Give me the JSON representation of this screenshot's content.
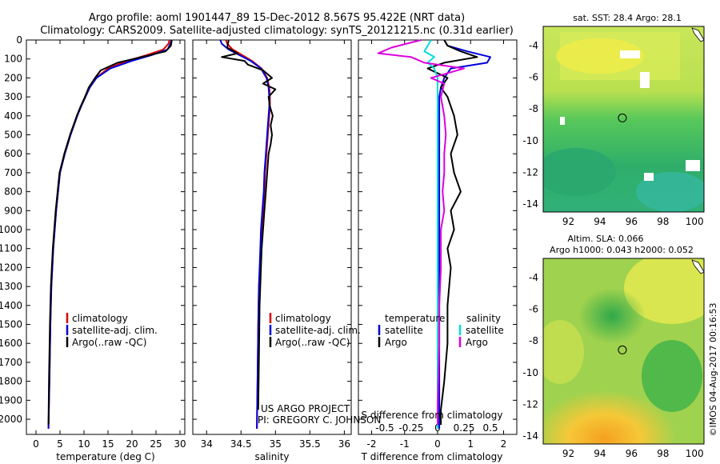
{
  "header": {
    "title_line1": "Argo profile: aoml 1901447_89 15-Dec-2012 8.567S 95.422E (NRT data)",
    "title_line2": "Climatology: CARS2009. Satellite-adjusted climatology: synTS_20121215.nc (0.31d earlier)"
  },
  "colors": {
    "climatology": "#dd0000",
    "satellite": "#0000dd",
    "argo": "#000000",
    "salinity_satellite": "#00dddd",
    "salinity_argo": "#dd00dd"
  },
  "chart_data": [
    {
      "type": "line",
      "name": "temperature-profile",
      "xlabel": "temperature (deg C)",
      "ylabel": "",
      "xlim": [
        -2,
        31
      ],
      "ylim": [
        2080,
        0
      ],
      "xticks": [
        "0",
        "5",
        "10",
        "15",
        "20",
        "25",
        "30"
      ],
      "xtick_values": [
        0,
        5,
        10,
        15,
        20,
        25,
        30
      ],
      "yticks": [
        "0",
        "100",
        "200",
        "300",
        "400",
        "500",
        "600",
        "700",
        "800",
        "900",
        "1000",
        "1100",
        "1200",
        "1300",
        "1400",
        "1500",
        "1600",
        "1700",
        "1800",
        "1900",
        "2000"
      ],
      "ytick_values": [
        0,
        100,
        200,
        300,
        400,
        500,
        600,
        700,
        800,
        900,
        1000,
        1100,
        1200,
        1300,
        1400,
        1500,
        1600,
        1700,
        1800,
        1900,
        2000
      ],
      "legend": [
        "climatology",
        "satellite-adj. clim.",
        "Argo(..raw -QC)"
      ],
      "series": [
        {
          "name": "climatology",
          "color": "#dd0000",
          "x": [
            27.8,
            27.6,
            26.5,
            23,
            19,
            15,
            12.5,
            11.2,
            10.3,
            9.4,
            8.6,
            7.9,
            7.2,
            6.6,
            6.0,
            5.5,
            5.0,
            4.6,
            4.2,
            3.9,
            3.6,
            3.4,
            3.2,
            3.0,
            2.8,
            2.6
          ],
          "y": [
            0,
            20,
            50,
            80,
            110,
            150,
            200,
            250,
            300,
            350,
            400,
            450,
            500,
            550,
            600,
            650,
            700,
            800,
            900,
            1000,
            1100,
            1200,
            1300,
            1500,
            1800,
            2050
          ]
        },
        {
          "name": "satellite-adj. clim.",
          "color": "#0000dd",
          "x": [
            28.2,
            28.0,
            27.4,
            24,
            20,
            15.5,
            12.6,
            11.2,
            10.3,
            9.4,
            8.6,
            7.9,
            7.2,
            6.6,
            6.0,
            5.5,
            5.0,
            4.6,
            4.2,
            3.9,
            3.6,
            3.4,
            3.2,
            3.0,
            2.8,
            2.6
          ],
          "y": [
            0,
            20,
            50,
            80,
            110,
            150,
            200,
            250,
            300,
            350,
            400,
            450,
            500,
            550,
            600,
            650,
            700,
            800,
            900,
            1000,
            1100,
            1200,
            1300,
            1500,
            1800,
            2050
          ]
        },
        {
          "name": "Argo(..raw -QC)",
          "color": "#000000",
          "x": [
            28.3,
            28.1,
            27.0,
            22,
            17,
            13.5,
            12.3,
            11.0,
            10.2,
            9.3,
            8.5,
            7.8,
            7.1,
            6.5,
            5.9,
            5.4,
            4.9,
            4.5,
            4.1,
            3.8,
            3.5,
            3.3,
            3.1,
            2.9,
            2.7,
            2.6
          ],
          "y": [
            0,
            30,
            60,
            90,
            120,
            160,
            200,
            250,
            300,
            350,
            400,
            450,
            500,
            550,
            600,
            650,
            700,
            800,
            900,
            1000,
            1100,
            1200,
            1300,
            1500,
            1800,
            2030
          ]
        }
      ]
    },
    {
      "type": "line",
      "name": "salinity-profile",
      "xlabel": "salinity",
      "xlim": [
        33.8,
        36.1
      ],
      "ylim": [
        2080,
        0
      ],
      "xticks": [
        "34",
        "34.5",
        "35",
        "35.5",
        "36"
      ],
      "xtick_values": [
        34,
        34.5,
        35,
        35.5,
        36
      ],
      "legend": [
        "climatology",
        "satellite-adj. clim.",
        "Argo(..raw -QC)"
      ],
      "annotation_line1": "US ARGO PROJECT",
      "annotation_line2": "PI: GREGORY C. JOHNSON",
      "series": [
        {
          "name": "climatology",
          "color": "#dd0000",
          "x": [
            34.28,
            34.3,
            34.38,
            34.52,
            34.66,
            34.8,
            34.88,
            34.91,
            34.92,
            34.92,
            34.91,
            34.9,
            34.89,
            34.88,
            34.87,
            34.86,
            34.85,
            34.84,
            34.82,
            34.8,
            34.79,
            34.78,
            34.76,
            34.75,
            34.74,
            34.73
          ],
          "y": [
            0,
            20,
            50,
            80,
            110,
            150,
            200,
            250,
            300,
            350,
            400,
            450,
            500,
            550,
            600,
            650,
            700,
            800,
            900,
            1000,
            1100,
            1200,
            1300,
            1500,
            1800,
            2050
          ]
        },
        {
          "name": "satellite-adj. clim.",
          "color": "#0000dd",
          "x": [
            34.2,
            34.22,
            34.32,
            34.48,
            34.64,
            34.79,
            34.87,
            34.9,
            34.91,
            34.91,
            34.9,
            34.89,
            34.88,
            34.87,
            34.86,
            34.85,
            34.84,
            34.83,
            34.81,
            34.79,
            34.78,
            34.77,
            34.76,
            34.75,
            34.74,
            34.73
          ],
          "y": [
            0,
            20,
            50,
            80,
            110,
            150,
            200,
            250,
            300,
            350,
            400,
            450,
            500,
            550,
            600,
            650,
            700,
            800,
            900,
            1000,
            1100,
            1200,
            1300,
            1500,
            1800,
            2050
          ]
        },
        {
          "name": "Argo(..raw -QC)",
          "color": "#000000",
          "x": [
            34.32,
            34.3,
            34.45,
            34.22,
            34.55,
            34.6,
            34.82,
            34.95,
            34.82,
            35.0,
            34.9,
            34.92,
            34.96,
            34.93,
            34.95,
            34.93,
            34.9,
            34.88,
            34.86,
            34.84,
            34.82,
            34.8,
            34.79,
            34.77,
            34.76,
            34.75
          ],
          "y": [
            0,
            40,
            70,
            90,
            110,
            130,
            160,
            200,
            230,
            260,
            300,
            350,
            400,
            450,
            500,
            550,
            600,
            700,
            800,
            900,
            1000,
            1100,
            1200,
            1400,
            1700,
            1950
          ]
        }
      ]
    },
    {
      "type": "line",
      "name": "difference-profile",
      "xlabel_top": "S difference from climatology",
      "xlabel": "T difference from climatology",
      "xlim": [
        -2.4,
        2.4
      ],
      "ylim": [
        2080,
        0
      ],
      "xticks": [
        "-2",
        "-1",
        "0",
        "1",
        "2"
      ],
      "xtick_values": [
        -2,
        -1,
        0,
        1,
        2
      ],
      "sticks": [
        "-0.5",
        "-0.25",
        "0",
        "0.25",
        "0.5"
      ],
      "stick_values": [
        -1.6,
        -0.8,
        0,
        0.8,
        1.6
      ],
      "legend_temperature": "temperature",
      "legend_salinity": "salinity",
      "legend_items": [
        "satellite",
        "Argo",
        "satellite",
        "Argo"
      ],
      "series": [
        {
          "name": "T satellite",
          "color": "#0000dd",
          "x": [
            0.2,
            0.3,
            0.9,
            1.6,
            1.5,
            0.4,
            0.2,
            0.1,
            0.05,
            0.05,
            0.05,
            0.05,
            0.05,
            0.05,
            0.05,
            0.05,
            0.05,
            0.05,
            0.05,
            0.05,
            0.05,
            0.05,
            0.05
          ],
          "y": [
            0,
            30,
            60,
            90,
            120,
            150,
            200,
            250,
            300,
            400,
            500,
            600,
            700,
            800,
            900,
            1000,
            1100,
            1200,
            1400,
            1600,
            1800,
            1950,
            2050
          ]
        },
        {
          "name": "T Argo",
          "color": "#000000",
          "x": [
            0.2,
            0.3,
            0.7,
            1.2,
            0.2,
            -0.3,
            0.3,
            0.1,
            0.3,
            0.5,
            0.6,
            0.4,
            0.5,
            0.7,
            0.4,
            0.5,
            0.3,
            0.4,
            0.3,
            0.3,
            0.2,
            0.1,
            0.1
          ],
          "y": [
            0,
            30,
            60,
            90,
            120,
            150,
            200,
            250,
            300,
            400,
            500,
            600,
            700,
            800,
            900,
            1000,
            1100,
            1200,
            1400,
            1600,
            1800,
            1950,
            2030
          ]
        },
        {
          "name": "S satellite",
          "color": "#00dddd",
          "x": [
            -0.2,
            -0.3,
            -0.4,
            -0.1,
            -0.3,
            -0.1,
            0.0,
            0.0,
            0.0,
            0.0,
            0.0,
            0.0,
            0.0,
            0.0,
            0.0,
            0.0,
            0.0,
            0.0,
            0.0,
            0.0,
            0.0,
            0.0,
            0.0
          ],
          "y": [
            0,
            30,
            60,
            90,
            120,
            150,
            200,
            250,
            300,
            400,
            500,
            600,
            700,
            800,
            900,
            1000,
            1100,
            1200,
            1400,
            1600,
            1800,
            1950,
            2050
          ]
        },
        {
          "name": "S Argo",
          "color": "#dd00dd",
          "x": [
            -0.5,
            -1.4,
            -1.8,
            -0.8,
            -0.4,
            0.8,
            -0.2,
            0.2,
            0.1,
            0.2,
            0.25,
            0.2,
            0.2,
            0.15,
            0.2,
            0.1,
            0.1,
            0.1,
            0.05,
            0.05,
            0.02,
            0.0,
            0.0
          ],
          "y": [
            0,
            40,
            70,
            90,
            120,
            150,
            200,
            230,
            300,
            400,
            500,
            600,
            700,
            800,
            900,
            1000,
            1100,
            1200,
            1400,
            1600,
            1800,
            1950,
            2030
          ]
        }
      ]
    },
    {
      "type": "heatmap",
      "name": "sst-map",
      "title": "sat. SST: 28.4 Argo: 28.1",
      "xlim": [
        90.4,
        100.6
      ],
      "ylim": [
        -14.5,
        -2.8
      ],
      "xticks": [
        "92",
        "94",
        "96",
        "98",
        "100"
      ],
      "xtick_values": [
        92,
        94,
        96,
        98,
        100
      ],
      "yticks": [
        "-4",
        "-6",
        "-8",
        "-10",
        "-12",
        "-14"
      ],
      "ytick_values": [
        -4,
        -6,
        -8,
        -10,
        -12,
        -14
      ],
      "marker": {
        "lon": 95.42,
        "lat": -8.57
      }
    },
    {
      "type": "heatmap",
      "name": "sla-map",
      "title_line1": "Altim. SLA: 0.066",
      "title_line2": "Argo h1000: 0.043 h2000: 0.052",
      "xlim": [
        90.4,
        100.6
      ],
      "ylim": [
        -14.5,
        -2.8
      ],
      "xticks": [
        "92",
        "94",
        "96",
        "98",
        "100"
      ],
      "xtick_values": [
        92,
        94,
        96,
        98,
        100
      ],
      "yticks": [
        "-4",
        "-6",
        "-8",
        "-10",
        "-12",
        "-14"
      ],
      "ytick_values": [
        -4,
        -6,
        -8,
        -10,
        -12,
        -14
      ],
      "marker": {
        "lon": 95.42,
        "lat": -8.57
      }
    }
  ],
  "footer": {
    "stamp": "©IMOS 04-Aug-2017 00:16:53"
  }
}
